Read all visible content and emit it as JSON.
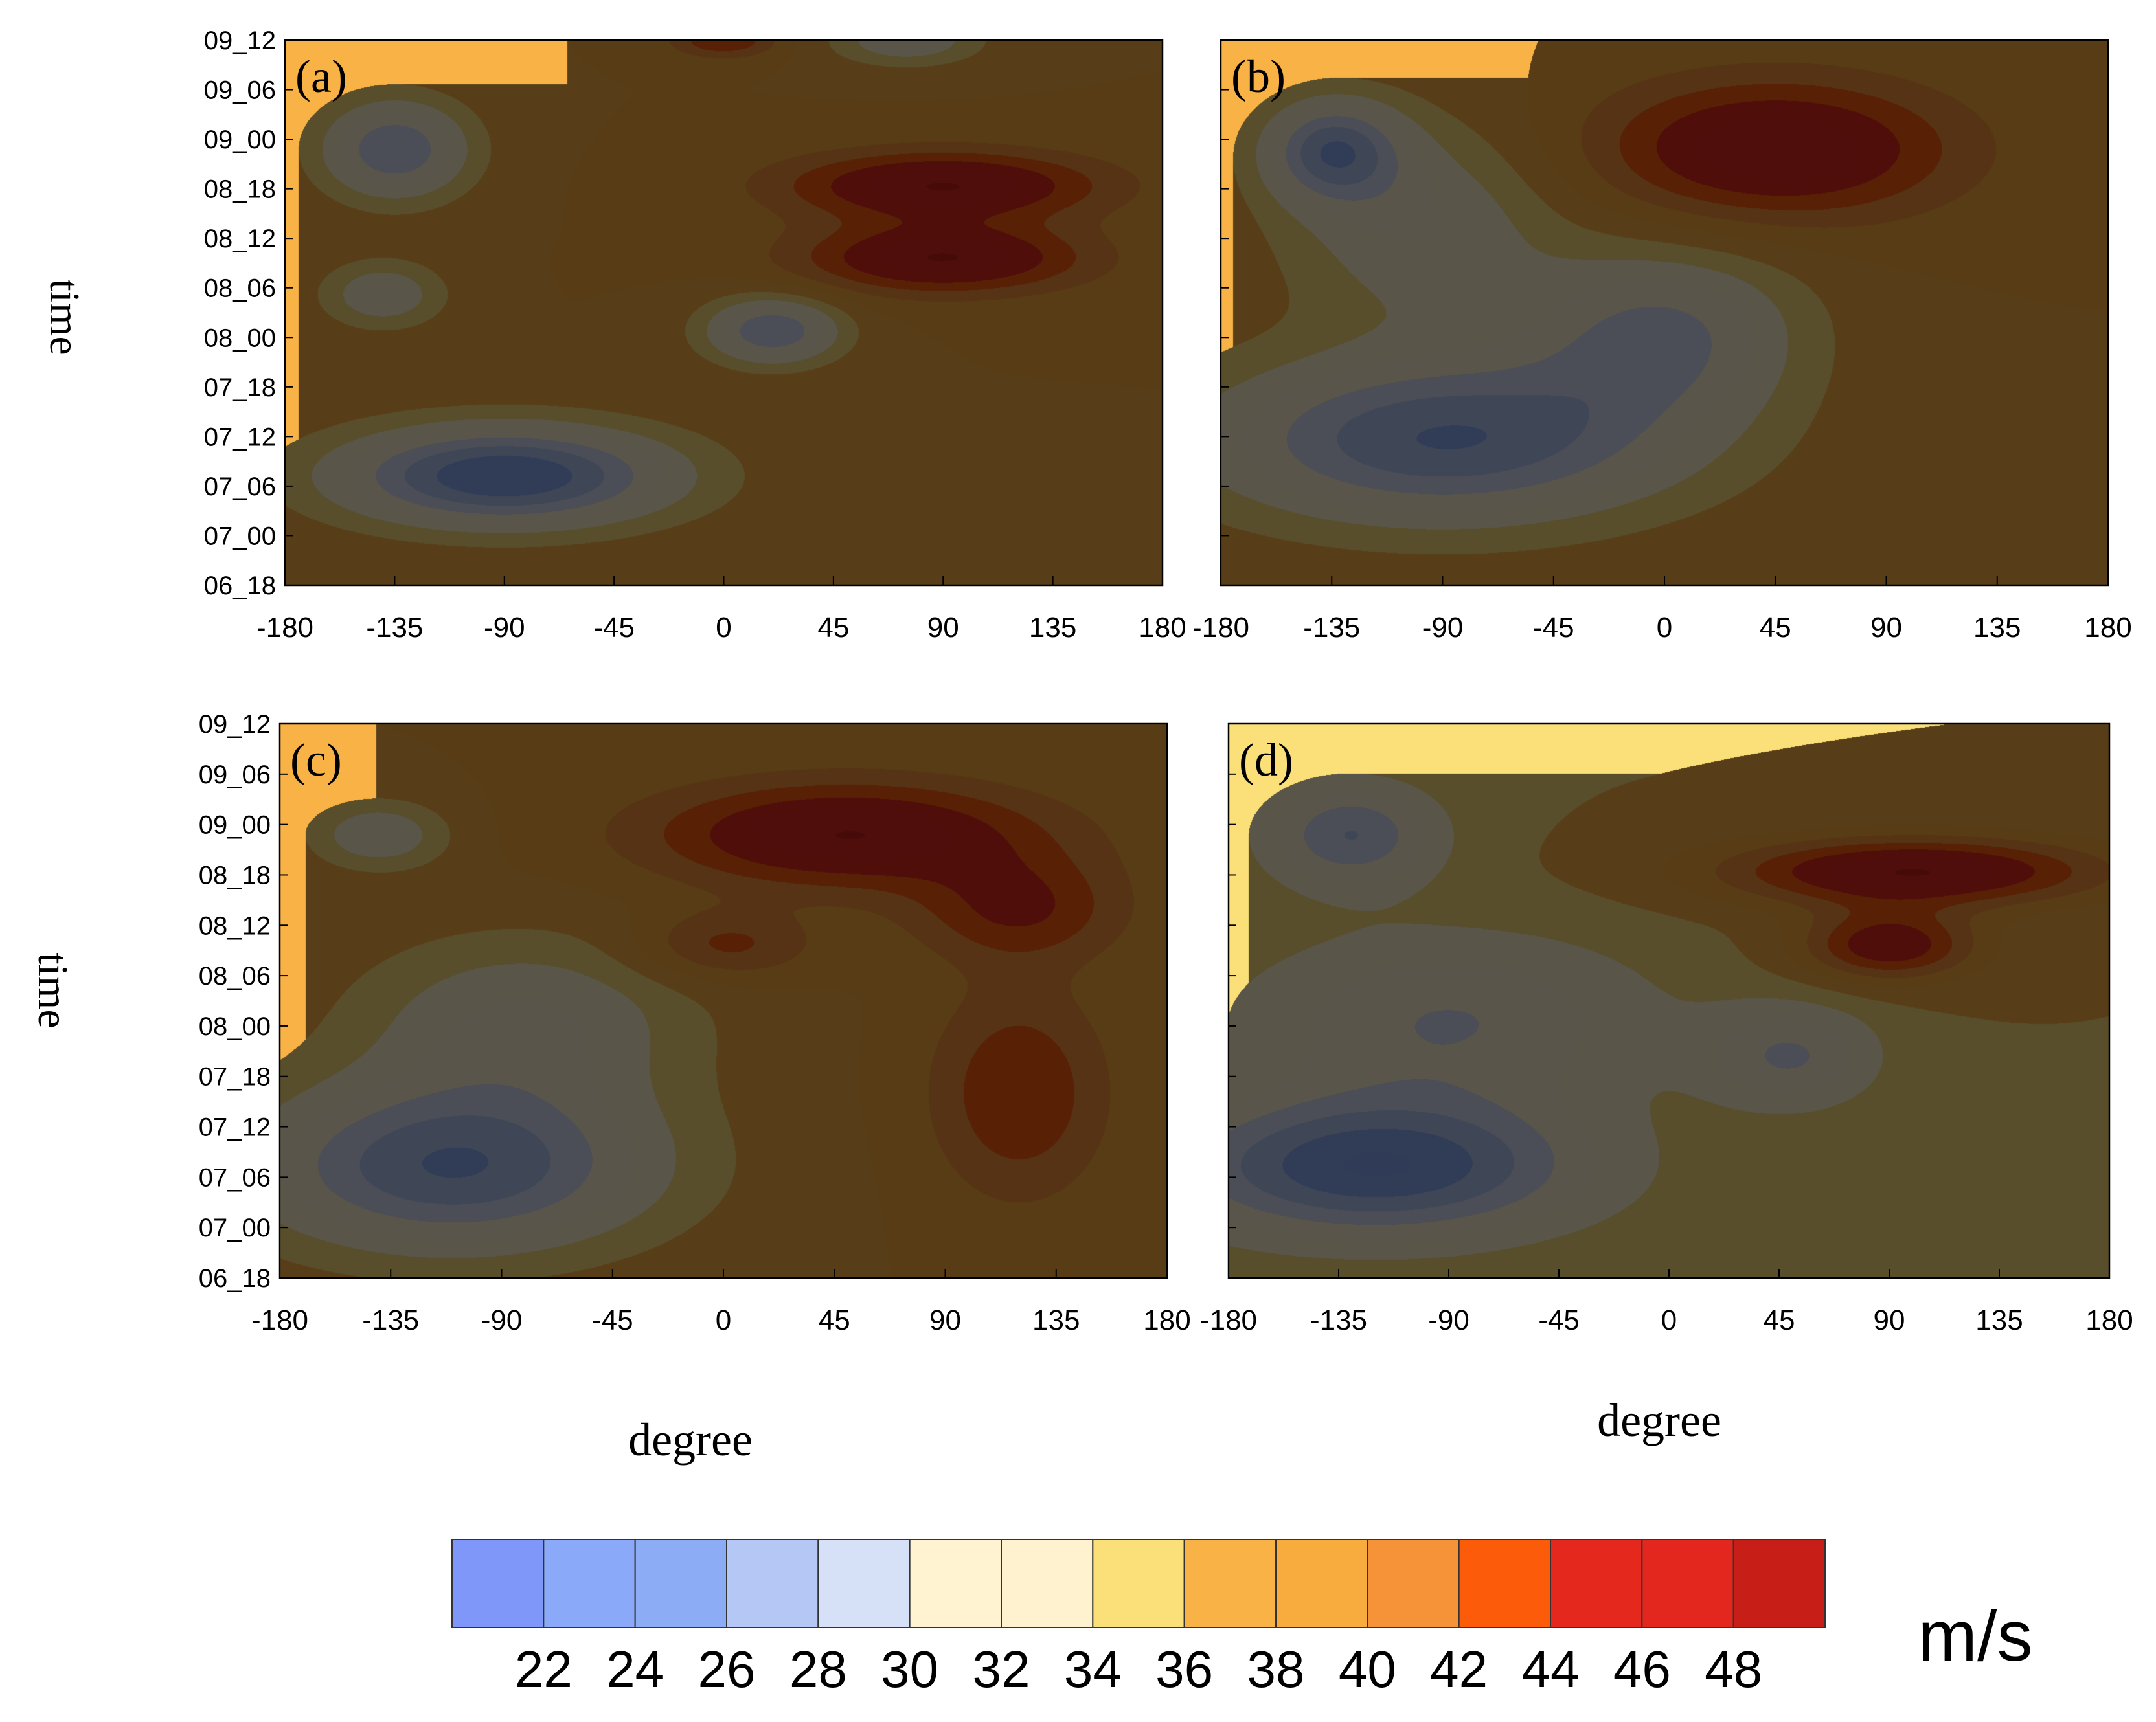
{
  "figure": {
    "y_axis_title": "time",
    "x_axis_title": "degree",
    "unit_label": "m/s"
  },
  "chart_data": [
    {
      "type": "heatmap",
      "panel_label": "(a)",
      "xlabel": "",
      "ylabel": "time",
      "x_ticks": [
        -180,
        -135,
        -90,
        -45,
        0,
        45,
        90,
        135,
        180
      ],
      "y_ticks": [
        "06_18",
        "07_00",
        "07_06",
        "07_12",
        "07_18",
        "08_00",
        "08_06",
        "08_12",
        "08_18",
        "09_00",
        "09_06",
        "09_12"
      ],
      "xlim": [
        -180,
        180
      ],
      "background_value": 38,
      "features": [
        {
          "x": 90,
          "t": 12,
          "value": 48,
          "sx": 45,
          "st": 4
        },
        {
          "x": 90,
          "t": 0,
          "value": 48,
          "sx": 40,
          "st": 4
        },
        {
          "x": -135,
          "t": 18,
          "value": 28,
          "sx": 22,
          "st": 6
        },
        {
          "x": -90,
          "t": -36,
          "value": 24,
          "sx": 50,
          "st": 6
        },
        {
          "x": 20,
          "t": -12,
          "value": 28,
          "sx": 20,
          "st": 4
        },
        {
          "x": -140,
          "t": -6,
          "value": 32,
          "sx": 18,
          "st": 4
        },
        {
          "x": 75,
          "t": 36,
          "value": 32,
          "sx": 22,
          "st": 3
        },
        {
          "x": 0,
          "t": 36,
          "value": 44,
          "sx": 15,
          "st": 2
        }
      ]
    },
    {
      "type": "heatmap",
      "panel_label": "(b)",
      "xlabel": "",
      "ylabel": "",
      "x_ticks": [
        -180,
        -135,
        -90,
        -45,
        0,
        45,
        90,
        135,
        180
      ],
      "y_ticks": [
        "06_18",
        "07_00",
        "07_06",
        "07_12",
        "07_18",
        "08_00",
        "08_06",
        "08_12",
        "08_18",
        "09_00",
        "09_06",
        "09_12"
      ],
      "xlim": [
        -180,
        180
      ],
      "background_value": 38,
      "features": [
        {
          "x": 45,
          "t": 18,
          "value": 48,
          "sx": 50,
          "st": 8
        },
        {
          "x": -135,
          "t": 18,
          "value": 28,
          "sx": 20,
          "st": 6
        },
        {
          "x": -90,
          "t": -30,
          "value": 26,
          "sx": 70,
          "st": 10
        },
        {
          "x": 0,
          "t": -12,
          "value": 30,
          "sx": 40,
          "st": 10
        },
        {
          "x": -100,
          "t": 6,
          "value": 32,
          "sx": 40,
          "st": 12
        }
      ]
    },
    {
      "type": "heatmap",
      "panel_label": "(c)",
      "xlabel": "degree",
      "ylabel": "time",
      "x_ticks": [
        -180,
        -135,
        -90,
        -45,
        0,
        45,
        90,
        135,
        180
      ],
      "y_ticks": [
        "06_18",
        "07_00",
        "07_06",
        "07_12",
        "07_18",
        "08_00",
        "08_06",
        "08_12",
        "08_18",
        "09_00",
        "09_06",
        "09_12"
      ],
      "xlim": [
        -180,
        180
      ],
      "background_value": 38,
      "features": [
        {
          "x": 50,
          "t": 18,
          "value": 48,
          "sx": 55,
          "st": 6
        },
        {
          "x": 120,
          "t": 6,
          "value": 44,
          "sx": 30,
          "st": 6
        },
        {
          "x": 120,
          "t": -24,
          "value": 44,
          "sx": 25,
          "st": 12
        },
        {
          "x": 0,
          "t": 0,
          "value": 43,
          "sx": 25,
          "st": 4
        },
        {
          "x": -110,
          "t": -36,
          "value": 26,
          "sx": 60,
          "st": 10
        },
        {
          "x": -80,
          "t": -12,
          "value": 32,
          "sx": 50,
          "st": 10
        },
        {
          "x": -140,
          "t": 18,
          "value": 32,
          "sx": 20,
          "st": 4
        }
      ]
    },
    {
      "type": "heatmap",
      "panel_label": "(d)",
      "xlabel": "degree",
      "ylabel": "",
      "x_ticks": [
        -180,
        -135,
        -90,
        -45,
        0,
        45,
        90,
        135,
        180
      ],
      "y_ticks": [
        "06_18",
        "07_00",
        "07_06",
        "07_12",
        "07_18",
        "08_00",
        "08_06",
        "08_12",
        "08_18",
        "09_00",
        "09_06",
        "09_12"
      ],
      "xlim": [
        -180,
        180
      ],
      "background_value": 36,
      "features": [
        {
          "x": 100,
          "t": 12,
          "value": 48,
          "sx": 55,
          "st": 4
        },
        {
          "x": 90,
          "t": 0,
          "value": 46,
          "sx": 25,
          "st": 4
        },
        {
          "x": -130,
          "t": 18,
          "value": 28,
          "sx": 25,
          "st": 6
        },
        {
          "x": -120,
          "t": -36,
          "value": 24,
          "sx": 60,
          "st": 8
        },
        {
          "x": -90,
          "t": -12,
          "value": 30,
          "sx": 60,
          "st": 10
        },
        {
          "x": 50,
          "t": -18,
          "value": 30,
          "sx": 25,
          "st": 6
        }
      ]
    }
  ],
  "colorbar": {
    "labels": [
      "22",
      "24",
      "26",
      "28",
      "30",
      "32",
      "34",
      "36",
      "38",
      "40",
      "42",
      "44",
      "46",
      "48"
    ],
    "colors": [
      "#7f97f8",
      "#8aa9f8",
      "#8cacf5",
      "#b5c8f5",
      "#d6e0f7",
      "#fff3d2",
      "#fff2cf",
      "#fbe07a",
      "#f9b246",
      "#f8ac3d",
      "#f69339",
      "#fc5c0a",
      "#e5281e",
      "#e3271e",
      "#c71e17"
    ]
  }
}
